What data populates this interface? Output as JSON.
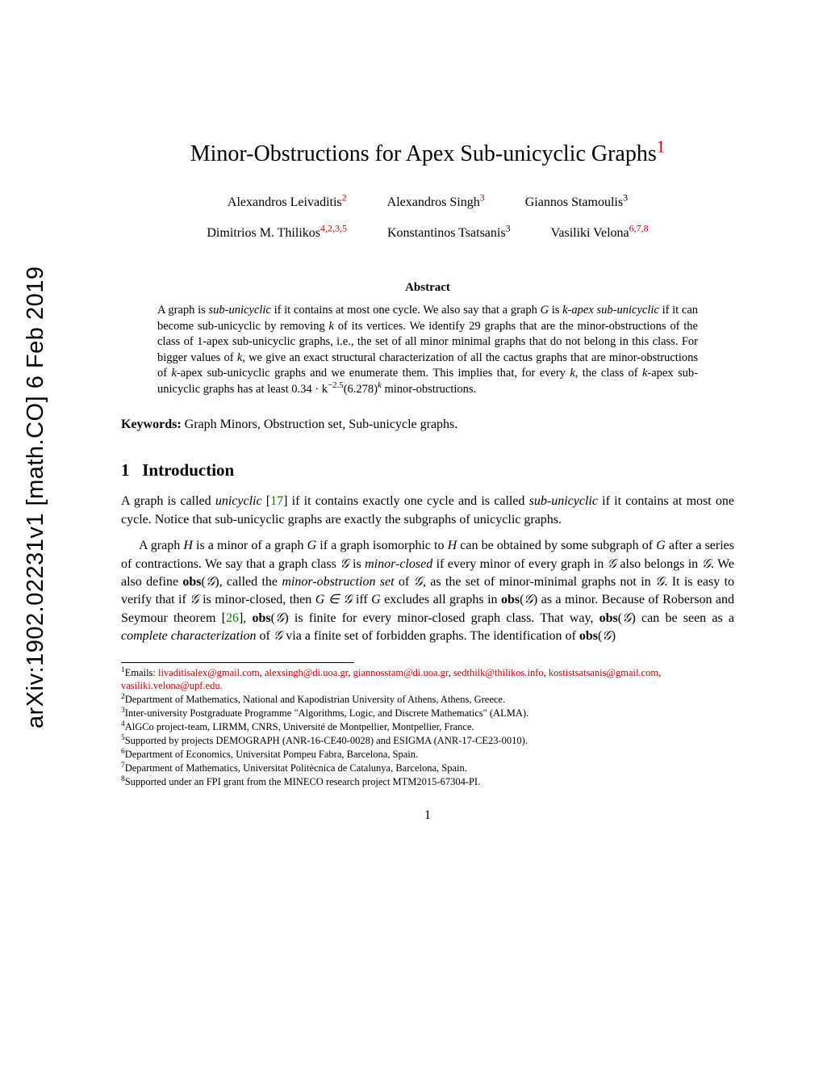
{
  "arxiv": {
    "text": "arXiv:1902.02231v1  [math.CO]  6 Feb 2019"
  },
  "title": {
    "text": "Minor-Obstructions for Apex Sub-unicyclic Graphs",
    "sup": "1"
  },
  "authors": {
    "row1": [
      {
        "name": "Alexandros Leivaditis",
        "sup": "2"
      },
      {
        "name": "Alexandros Singh",
        "sup": "3"
      },
      {
        "name": "Giannos Stamoulis",
        "sup": "3",
        "plain": true
      }
    ],
    "row2": [
      {
        "name": "Dimitrios M. Thilikos",
        "sup": "4,2,3,5"
      },
      {
        "name": "Konstantinos Tsatsanis",
        "sup": "3",
        "plain": true
      },
      {
        "name": "Vasiliki Velona",
        "sup": "6,7,8"
      }
    ]
  },
  "abstract": {
    "heading": "Abstract",
    "text_parts": {
      "p1a": "A graph is ",
      "p1b": "sub-unicyclic",
      "p1c": " if it contains at most one cycle. We also say that a graph ",
      "p1d": "G",
      "p1e": " is ",
      "p1f": "k-apex sub-unicyclic",
      "p1g": " if it can become sub-unicyclic by removing ",
      "p1h": "k",
      "p1i": " of its vertices. We identify 29 graphs that are the minor-obstructions of the class of 1-apex sub-unicyclic graphs, i.e., the set of all minor minimal graphs that do not belong in this class. For bigger values of ",
      "p1j": "k",
      "p1k": ", we give an exact structural characterization of all the cactus graphs that are minor-obstructions of ",
      "p1l": "k",
      "p1m": "-apex sub-unicyclic graphs and we enumerate them. This implies that, for every ",
      "p1n": "k",
      "p1o": ", the class of ",
      "p1p": "k",
      "p1q": "-apex sub-unicyclic graphs has at least ",
      "p1r": "0.34 · k",
      "p1r2": "−2.5",
      "p1r3": "(6.278)",
      "p1r4": "k",
      "p1s": " minor-obstructions."
    }
  },
  "keywords": {
    "label": "Keywords:",
    "text": " Graph Minors, Obstruction set, Sub-unicycle graphs."
  },
  "section1": {
    "number": "1",
    "title": "Introduction"
  },
  "body": {
    "p1a": "A graph is called ",
    "p1b": "unicyclic",
    "p1c": " [",
    "p1d": "17",
    "p1e": "] if it contains exactly one cycle and is called ",
    "p1f": "sub-unicyclic",
    "p1g": " if it contains at most one cycle. Notice that sub-unicyclic graphs are exactly the subgraphs of unicyclic graphs.",
    "p2a": "A graph ",
    "p2b": "H",
    "p2c": " is a minor of a graph ",
    "p2d": "G",
    "p2e": " if a graph isomorphic to ",
    "p2f": "H",
    "p2g": " can be obtained by some subgraph of ",
    "p2h": "G",
    "p2i": " after a series of contractions. We say that a graph class ",
    "p2j": "𝒢",
    "p2k": " is ",
    "p2l": "minor-closed",
    "p2m": " if every minor of every graph in ",
    "p2n": "𝒢",
    "p2o": " also belongs in ",
    "p2p": "𝒢",
    "p2q": ". We also define ",
    "p2r": "obs",
    "p2s": "(",
    "p2t": "𝒢",
    "p2u": "), called the ",
    "p2v": "minor-obstruction set",
    "p2w": " of ",
    "p2x": "𝒢",
    "p2y": ", as the set of minor-minimal graphs not in ",
    "p2z": "𝒢",
    "p2aa": ". It is easy to verify that if ",
    "p2ab": "𝒢",
    "p2ac": " is minor-closed, then ",
    "p2ad": "G ∈ 𝒢",
    "p2ae": " iff ",
    "p2af": "G",
    "p2ag": " excludes all graphs in ",
    "p2ah": "obs",
    "p2ai": "(",
    "p2aj": "𝒢",
    "p2ak": ") as a minor. Because of Roberson and Seymour theorem [",
    "p2al": "26",
    "p2am": "], ",
    "p2an": "obs",
    "p2ao": "(",
    "p2ap": "𝒢",
    "p2aq": ") is finite for every minor-closed graph class. That way, ",
    "p2ar": "obs",
    "p2as": "(",
    "p2at": "𝒢",
    "p2au": ") can be seen as a ",
    "p2av": "complete characterization",
    "p2aw": " of ",
    "p2ax": "𝒢",
    "p2ay": " via a finite set of forbidden graphs. The identification of ",
    "p2az": "obs",
    "p2ba": "(",
    "p2bb": "𝒢",
    "p2bc": ")"
  },
  "footnotes": {
    "f1_label": "1",
    "f1_text": "Emails: ",
    "f1_emails": [
      "livaditisalex@gmail.com",
      "alexsingh@di.uoa.gr",
      "giannosstam@di.uoa.gr",
      "sedthilk@thilikos.info",
      "kostistsatsanis@gmail.com",
      "vasiliki.velona@upf.edu"
    ],
    "f1_end": ".",
    "f2_label": "2",
    "f2_text": "Department of Mathematics, National and Kapodistrian University of Athens, Athens, Greece.",
    "f3_label": "3",
    "f3_text": "Inter-university Postgraduate Programme \"Algorithms, Logic, and Discrete Mathematics\" (ALMA).",
    "f4_label": "4",
    "f4_text": "AlGCo project-team, LIRMM, CNRS, Université de Montpellier, Montpellier, France.",
    "f5_label": "5",
    "f5_text": "Supported by projects DEMOGRAPH (ANR-16-CE40-0028) and ESIGMA (ANR-17-CE23-0010).",
    "f6_label": "6",
    "f6_text": "Department of Economics, Universitat Pompeu Fabra, Barcelona, Spain.",
    "f7_label": "7",
    "f7_text": "Department of Mathematics, Universitat Politècnica de Catalunya, Barcelona, Spain.",
    "f8_label": "8",
    "f8_text": "Supported under an FPI grant from the MINECO research project MTM2015-67304-PI."
  },
  "page_number": "1"
}
